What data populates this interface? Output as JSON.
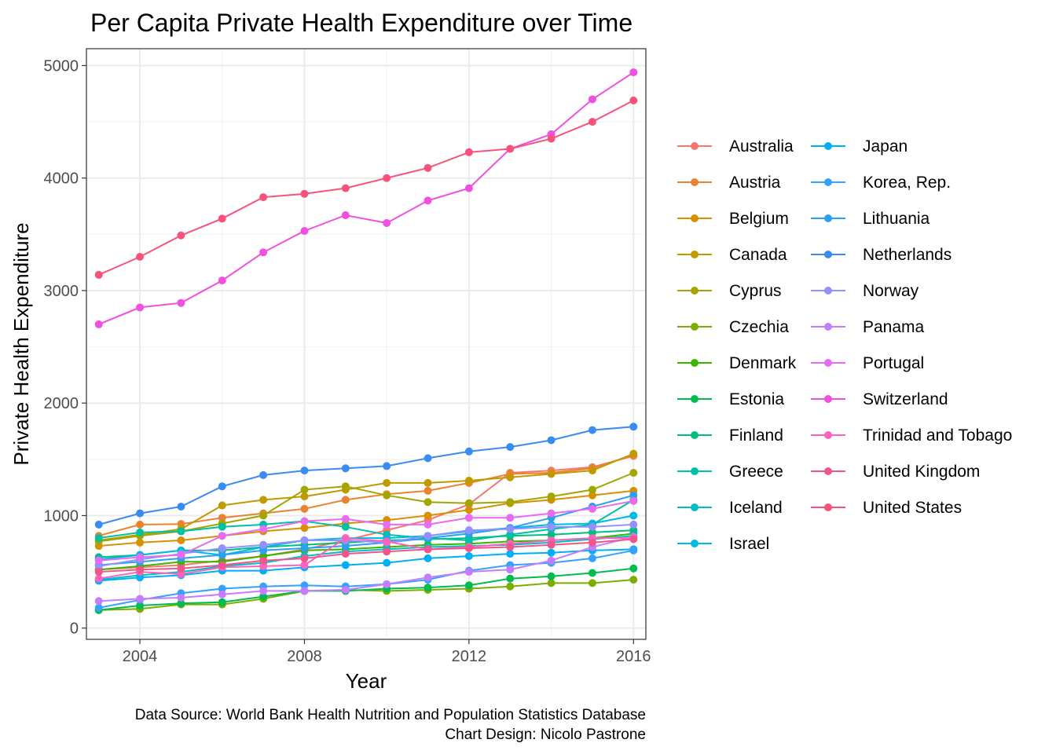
{
  "chart_data": {
    "type": "line",
    "title": "Per Capita Private Health Expenditure over Time",
    "xlabel": "Year",
    "ylabel": "Private Health Expenditure",
    "xlim": [
      2002.7,
      2016.3
    ],
    "ylim": [
      -100,
      5150
    ],
    "x_ticks": [
      2004,
      2008,
      2012,
      2016
    ],
    "y_ticks": [
      0,
      1000,
      2000,
      3000,
      4000,
      5000
    ],
    "grid": true,
    "legend_position": "right",
    "caption": [
      "Data Source: World Bank Health Nutrition and Population Statistics Database",
      "Chart Design: Nicolo Pastrone"
    ],
    "x": [
      2003,
      2004,
      2005,
      2006,
      2007,
      2008,
      2009,
      2010,
      2011,
      2012,
      2013,
      2014,
      2015,
      2016
    ],
    "series": [
      {
        "name": "Australia",
        "color": "#F8766D",
        "values": [
          520,
          540,
          560,
          600,
          640,
          700,
          780,
          870,
          960,
          1100,
          1380,
          1400,
          1430,
          1530
        ]
      },
      {
        "name": "Austria",
        "color": "#EA8331",
        "values": [
          820,
          920,
          925,
          980,
          1020,
          1060,
          1140,
          1190,
          1220,
          1290,
          1370,
          1380,
          1420,
          1540
        ]
      },
      {
        "name": "Belgium",
        "color": "#D89000",
        "values": [
          730,
          760,
          780,
          820,
          860,
          890,
          930,
          960,
          1000,
          1050,
          1110,
          1140,
          1180,
          1220
        ]
      },
      {
        "name": "Canada",
        "color": "#C09B00",
        "values": [
          780,
          830,
          880,
          1090,
          1140,
          1170,
          1230,
          1290,
          1290,
          1310,
          1340,
          1370,
          1400,
          1550
        ]
      },
      {
        "name": "Cyprus",
        "color": "#A3A500",
        "values": [
          770,
          820,
          860,
          930,
          1000,
          1230,
          1260,
          1180,
          1120,
          1110,
          1120,
          1170,
          1230,
          1380
        ]
      },
      {
        "name": "Czechia",
        "color": "#7CAE00",
        "values": [
          160,
          170,
          210,
          210,
          260,
          330,
          340,
          330,
          340,
          350,
          370,
          400,
          400,
          430
        ]
      },
      {
        "name": "Denmark",
        "color": "#39B600",
        "values": [
          520,
          550,
          590,
          590,
          640,
          690,
          700,
          720,
          740,
          750,
          770,
          780,
          800,
          840
        ]
      },
      {
        "name": "Estonia",
        "color": "#00BB4E",
        "values": [
          160,
          200,
          220,
          230,
          280,
          330,
          330,
          350,
          360,
          380,
          440,
          460,
          490,
          530
        ]
      },
      {
        "name": "Finland",
        "color": "#00BF7D",
        "values": [
          630,
          650,
          690,
          690,
          720,
          740,
          760,
          780,
          790,
          800,
          820,
          830,
          850,
          870
        ]
      },
      {
        "name": "Greece",
        "color": "#00C1A3",
        "values": [
          800,
          850,
          860,
          900,
          920,
          950,
          900,
          830,
          800,
          780,
          830,
          880,
          920,
          1140
        ]
      },
      {
        "name": "Iceland",
        "color": "#00BFC4",
        "values": [
          430,
          470,
          500,
          550,
          580,
          640,
          680,
          700,
          720,
          730,
          740,
          760,
          790,
          820
        ]
      },
      {
        "name": "Israel",
        "color": "#00BAE0",
        "values": [
          610,
          650,
          690,
          650,
          720,
          780,
          800,
          800,
          820,
          860,
          890,
          920,
          930,
          1000
        ]
      },
      {
        "name": "Japan",
        "color": "#00B0F6",
        "values": [
          420,
          450,
          470,
          510,
          510,
          540,
          560,
          580,
          620,
          640,
          660,
          670,
          690,
          700
        ]
      },
      {
        "name": "Korea, Rep.",
        "color": "#35A2FF",
        "values": [
          180,
          250,
          310,
          350,
          370,
          380,
          370,
          390,
          430,
          510,
          560,
          580,
          620,
          690
        ]
      },
      {
        "name": "Lithuania",
        "color": "#2BA0F0",
        "values": [
          560,
          590,
          620,
          650,
          690,
          710,
          730,
          760,
          800,
          840,
          890,
          980,
          1080,
          1180
        ]
      },
      {
        "name": "Netherlands",
        "color": "#3A8BF2",
        "values": [
          920,
          1020,
          1080,
          1260,
          1360,
          1400,
          1420,
          1440,
          1510,
          1570,
          1610,
          1670,
          1760,
          1790
        ]
      },
      {
        "name": "Norway",
        "color": "#9590FF",
        "values": [
          550,
          610,
          660,
          710,
          740,
          780,
          780,
          760,
          820,
          870,
          880,
          900,
          900,
          920
        ]
      },
      {
        "name": "Panama",
        "color": "#C77CFF",
        "values": [
          240,
          260,
          270,
          300,
          330,
          330,
          340,
          390,
          450,
          500,
          520,
          600,
          720,
          810
        ]
      },
      {
        "name": "Portugal",
        "color": "#E76BF3",
        "values": [
          600,
          630,
          650,
          820,
          880,
          950,
          970,
          920,
          920,
          980,
          980,
          1020,
          1060,
          1130
        ]
      },
      {
        "name": "Switzerland",
        "color": "#F14FE0",
        "values": [
          2700,
          2850,
          2890,
          3090,
          3340,
          3530,
          3670,
          3600,
          3800,
          3910,
          4260,
          4390,
          4700,
          4940
        ]
      },
      {
        "name": "Trinidad and Tobago",
        "color": "#FF62BC",
        "values": [
          440,
          500,
          480,
          540,
          550,
          560,
          800,
          770,
          700,
          720,
          750,
          780,
          800,
          800
        ]
      },
      {
        "name": "United Kingdom",
        "color": "#F0568B",
        "values": [
          500,
          520,
          530,
          560,
          600,
          620,
          660,
          680,
          700,
          710,
          720,
          740,
          760,
          790
        ]
      },
      {
        "name": "United States",
        "color": "#F9527A",
        "values": [
          3140,
          3300,
          3490,
          3640,
          3830,
          3860,
          3910,
          4000,
          4090,
          4230,
          4260,
          4350,
          4500,
          4690
        ]
      }
    ]
  }
}
